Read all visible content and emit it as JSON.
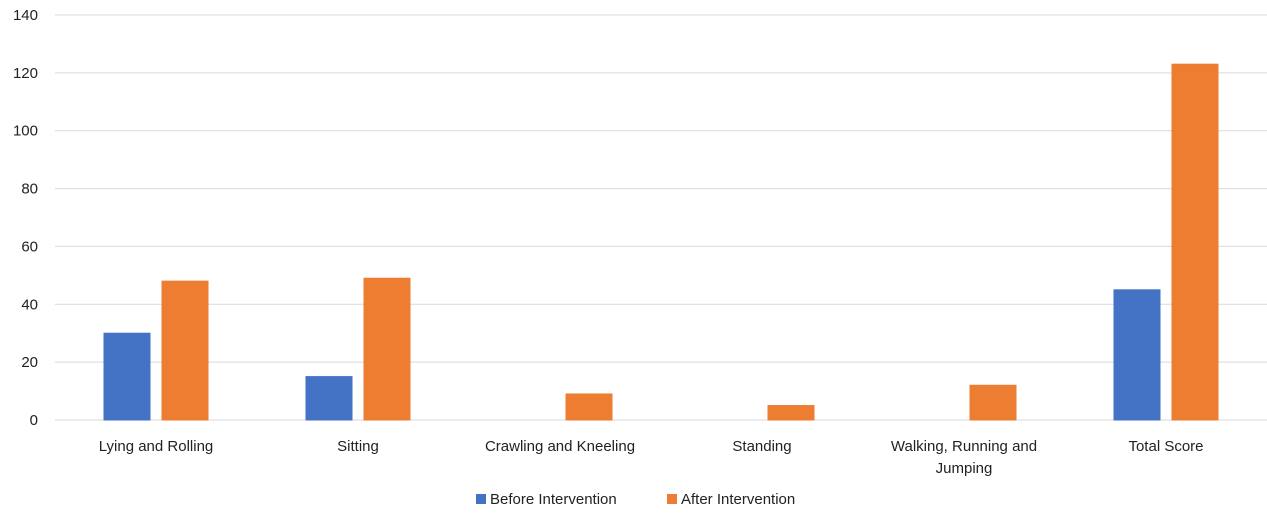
{
  "chart_data": {
    "type": "bar",
    "categories": [
      [
        "Lying and Rolling"
      ],
      [
        "Sitting"
      ],
      [
        "Crawling and Kneeling"
      ],
      [
        "Standing"
      ],
      [
        "Walking, Running and",
        "Jumping"
      ],
      [
        "Total Score"
      ]
    ],
    "series": [
      {
        "name": "Before Intervention",
        "color": "#4472c4",
        "values": [
          30,
          15,
          0,
          0,
          0,
          45
        ]
      },
      {
        "name": "After Intervention",
        "color": "#ed7d31",
        "values": [
          48,
          49,
          9,
          5,
          12,
          123
        ]
      }
    ],
    "ylim": [
      0,
      140
    ],
    "yticks": [
      0,
      20,
      40,
      60,
      80,
      100,
      120,
      140
    ],
    "grid": true,
    "legend": "bottom-center",
    "title": "",
    "xlabel": "",
    "ylabel": ""
  }
}
